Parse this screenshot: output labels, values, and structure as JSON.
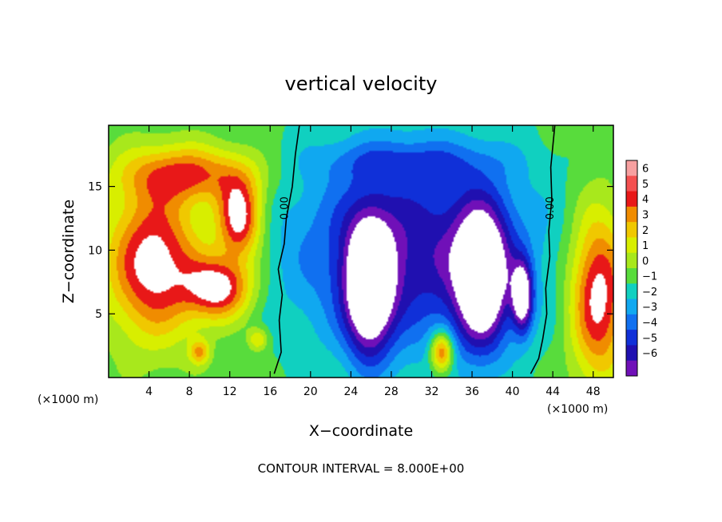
{
  "chart_data": {
    "type": "heatmap",
    "title": "vertical velocity",
    "xlabel": "X−coordinate",
    "ylabel": "Z−coordinate",
    "x_unit_label_left": "(×1000 m)",
    "x_unit_label_right": "(×1000 m)",
    "footer": "CONTOUR INTERVAL = 8.000E+00",
    "xlim": [
      0,
      50
    ],
    "ylim": [
      0,
      19.8
    ],
    "x_ticks": [
      4,
      8,
      12,
      16,
      20,
      24,
      28,
      32,
      36,
      40,
      44,
      48
    ],
    "x_tick_labels": [
      "4",
      "8",
      "12",
      "16",
      "20",
      "24",
      "28",
      "32",
      "36",
      "40",
      "44",
      "48"
    ],
    "y_ticks": [
      5,
      10,
      15
    ],
    "y_tick_labels": [
      "5",
      "10",
      "15"
    ],
    "zero_contour_label": "0.00",
    "zero_contours": [
      {
        "label": "0.00",
        "label_at": [
          17.5,
          13.3
        ],
        "points": [
          [
            16.4,
            0.3
          ],
          [
            17.1,
            2.0
          ],
          [
            16.9,
            4.5
          ],
          [
            17.2,
            6.5
          ],
          [
            16.8,
            8.5
          ],
          [
            17.4,
            10.5
          ],
          [
            17.6,
            12.5
          ],
          [
            18.2,
            15.0
          ],
          [
            18.5,
            17.5
          ],
          [
            18.9,
            19.8
          ]
        ]
      },
      {
        "label": "0.00",
        "label_at": [
          43.8,
          13.3
        ],
        "points": [
          [
            41.8,
            0.3
          ],
          [
            42.6,
            1.5
          ],
          [
            43.0,
            3.0
          ],
          [
            43.4,
            5.0
          ],
          [
            43.3,
            7.0
          ],
          [
            43.7,
            9.5
          ],
          [
            43.6,
            11.5
          ],
          [
            43.9,
            14.0
          ],
          [
            43.8,
            16.5
          ],
          [
            44.2,
            19.8
          ]
        ]
      }
    ],
    "colorbar": {
      "levels": [
        6,
        5,
        4,
        3,
        2,
        1,
        0,
        -1,
        -2,
        -3,
        -4,
        -5,
        -6
      ],
      "labels": [
        "6",
        "5",
        "4",
        "3",
        "2",
        "1",
        "0",
        "−1",
        "−2",
        "−3",
        "−4",
        "−5",
        "−6"
      ],
      "colors": [
        "#f7a0a0",
        "#f45050",
        "#e81818",
        "#f08c00",
        "#f0c800",
        "#d8ee00",
        "#a8e81c",
        "#58dc3c",
        "#10d0c0",
        "#10a8f0",
        "#1070f0",
        "#1030d8",
        "#2010b0",
        "#7010b8"
      ]
    },
    "features": [
      {
        "type": "updraft",
        "cx": 4.5,
        "cz": 9.0,
        "rx": 4.6,
        "rz": 5.8,
        "peak": 6.5
      },
      {
        "type": "updraft",
        "cx": 11.0,
        "cz": 7.0,
        "rx": 3.2,
        "rz": 2.4,
        "peak": 6.2
      },
      {
        "type": "updraft",
        "cx": 13.0,
        "cz": 12.5,
        "rx": 2.2,
        "rz": 3.2,
        "peak": 6.6
      },
      {
        "type": "updraft",
        "cx": 8.0,
        "cz": 16.0,
        "rx": 6.5,
        "rz": 2.2,
        "peak": 4.5
      },
      {
        "type": "updraft",
        "cx": 48.5,
        "cz": 6.5,
        "rx": 2.8,
        "rz": 6.5,
        "peak": 6.5
      },
      {
        "type": "updraft",
        "cx": 33.0,
        "cz": 2.0,
        "rx": 1.1,
        "rz": 1.6,
        "peak": 6.0
      },
      {
        "type": "updraft",
        "cx": 9.0,
        "cz": 2.0,
        "rx": 1.0,
        "rz": 1.0,
        "peak": 3.5
      },
      {
        "type": "updraft",
        "cx": 14.8,
        "cz": 3.0,
        "rx": 1.0,
        "rz": 0.9,
        "peak": 3.0
      },
      {
        "type": "downdraft",
        "cx": 30.0,
        "cz": 10.0,
        "rx": 12.0,
        "rz": 8.0,
        "peak": -5.2
      },
      {
        "type": "downdraft",
        "cx": 25.8,
        "cz": 7.0,
        "rx": 2.3,
        "rz": 5.2,
        "peak": -8.0
      },
      {
        "type": "downdraft",
        "cx": 37.0,
        "cz": 7.8,
        "rx": 2.6,
        "rz": 5.4,
        "peak": -8.0
      },
      {
        "type": "downdraft",
        "cx": 41.0,
        "cz": 6.3,
        "rx": 1.0,
        "rz": 2.7,
        "peak": -7.0
      },
      {
        "type": "downdraft",
        "cx": 29.5,
        "cz": 17.0,
        "rx": 9.0,
        "rz": 1.6,
        "peak": -1.8
      }
    ]
  }
}
